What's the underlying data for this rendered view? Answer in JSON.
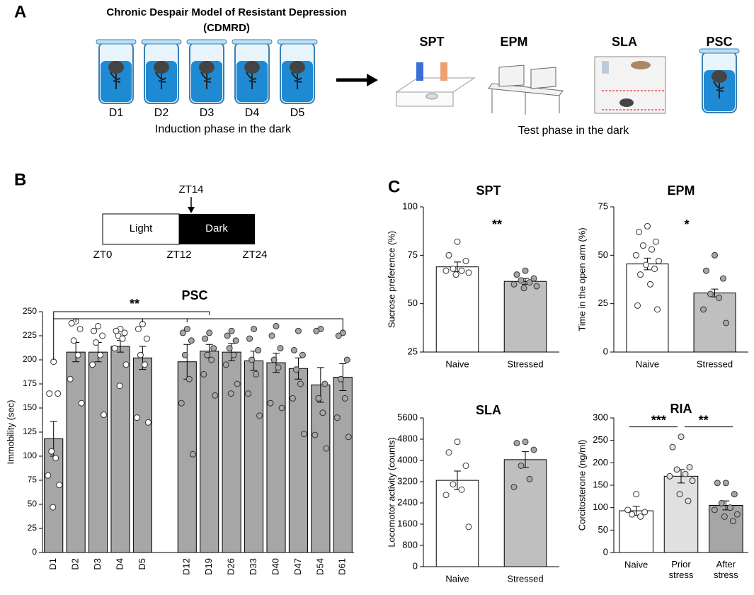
{
  "panel_labels": [
    "A",
    "B",
    "C"
  ],
  "panel_a": {
    "title": "Chronic Despair Model of Resistant Depression",
    "subtitle": "(CDMRD)",
    "days": [
      "D1",
      "D2",
      "D3",
      "D4",
      "D5"
    ],
    "induction_label": "Induction phase in the dark",
    "tests": [
      "SPT",
      "EPM",
      "SLA",
      "PSC"
    ],
    "test_label": "Test phase in the dark"
  },
  "timeline": {
    "marker": "ZT14",
    "light": "Light",
    "dark": "Dark",
    "ticks": [
      "ZT0",
      "ZT12",
      "ZT24"
    ]
  },
  "chart_data": [
    {
      "type": "bar",
      "title": "PSC",
      "ylabel": "Immobility (sec)",
      "categories": [
        "D1",
        "D2",
        "D3",
        "D4",
        "D5",
        null,
        "D12",
        "D19",
        "D26",
        "D33",
        "D40",
        "D47",
        "D54",
        "D61"
      ],
      "values": [
        118,
        208,
        208,
        214,
        202,
        null,
        198,
        209,
        208,
        199,
        197,
        191,
        174,
        182
      ],
      "errors": [
        18,
        10,
        10,
        6,
        12,
        null,
        18,
        7,
        9,
        10,
        10,
        11,
        18,
        14
      ],
      "points": [
        [
          198,
          165,
          165,
          105,
          98,
          80,
          70,
          47
        ],
        [
          240,
          238,
          232,
          220,
          205,
          180,
          155
        ],
        [
          235,
          230,
          225,
          218,
          205,
          195,
          143
        ],
        [
          232,
          230,
          228,
          225,
          222,
          212,
          195,
          173
        ],
        [
          237,
          232,
          222,
          205,
          195,
          140,
          135
        ],
        null,
        [
          232,
          228,
          220,
          205,
          180,
          155,
          102
        ],
        [
          228,
          222,
          212,
          205,
          200,
          185,
          163
        ],
        [
          230,
          225,
          220,
          212,
          205,
          195,
          175,
          165
        ],
        [
          232,
          222,
          210,
          200,
          185,
          165,
          142
        ],
        [
          235,
          225,
          212,
          200,
          192,
          155,
          150
        ],
        [
          230,
          210,
          205,
          190,
          175,
          160,
          123
        ],
        [
          232,
          230,
          175,
          160,
          145,
          122,
          108
        ],
        [
          228,
          225,
          200,
          180,
          160,
          140,
          120
        ]
      ],
      "colors": [
        "#a6a6a6",
        "#a6a6a6",
        "#a6a6a6",
        "#a6a6a6",
        "#a6a6a6",
        null,
        "#a6a6a6",
        "#a6a6a6",
        "#a6a6a6",
        "#a6a6a6",
        "#a6a6a6",
        "#a6a6a6",
        "#a6a6a6",
        "#a6a6a6"
      ],
      "point_colors": [
        "#ffffff",
        "#ffffff",
        "#ffffff",
        "#ffffff",
        "#ffffff",
        null,
        "#a6a6a6",
        "#a6a6a6",
        "#a6a6a6",
        "#a6a6a6",
        "#a6a6a6",
        "#a6a6a6",
        "#a6a6a6",
        "#a6a6a6"
      ],
      "ylim": [
        0,
        250
      ],
      "yticks": [
        0,
        25,
        50,
        75,
        100,
        125,
        150,
        175,
        200,
        225,
        250
      ],
      "annotations": [
        "**"
      ]
    },
    {
      "type": "bar",
      "title": "SPT",
      "ylabel": "Sucrose preference (%)",
      "categories": [
        "Naive",
        "Stressed"
      ],
      "values": [
        69,
        61.5
      ],
      "errors": [
        2.5,
        1.5
      ],
      "points": [
        [
          82,
          75,
          72,
          68,
          67,
          67,
          66,
          65
        ],
        [
          67,
          65,
          63,
          62,
          61,
          60,
          59,
          58
        ]
      ],
      "colors": [
        "#ffffff",
        "#bfbfbf"
      ],
      "point_colors": [
        "#ffffff",
        "#a6a6a6"
      ],
      "ylim": [
        25,
        100
      ],
      "yticks": [
        25,
        50,
        75,
        100
      ],
      "annotations": [
        "**"
      ]
    },
    {
      "type": "bar",
      "title": "EPM",
      "ylabel": "Time in the open arm (%)",
      "categories": [
        "Naive",
        "Stressed"
      ],
      "values": [
        45.5,
        30.5
      ],
      "errors": [
        3,
        2
      ],
      "points": [
        [
          65,
          62,
          57,
          55,
          53,
          50,
          47,
          45,
          43,
          40,
          35,
          24,
          22
        ],
        [
          50,
          42,
          38,
          30,
          28,
          22,
          15
        ]
      ],
      "colors": [
        "#ffffff",
        "#bfbfbf"
      ],
      "point_colors": [
        "#ffffff",
        "#a6a6a6"
      ],
      "ylim": [
        0,
        75
      ],
      "yticks": [
        0,
        25,
        50,
        75
      ],
      "annotations": [
        "*"
      ]
    },
    {
      "type": "bar",
      "title": "SLA",
      "ylabel": "Locomotor activity (counts)",
      "categories": [
        "Naive",
        "Stressed"
      ],
      "values": [
        3250,
        4030
      ],
      "errors": [
        350,
        300
      ],
      "points": [
        [
          4700,
          4300,
          3800,
          3100,
          2900,
          2700,
          1500
        ],
        [
          4700,
          4650,
          4400,
          3800,
          3300,
          3000
        ]
      ],
      "colors": [
        "#ffffff",
        "#bfbfbf"
      ],
      "point_colors": [
        "#ffffff",
        "#a6a6a6"
      ],
      "ylim": [
        0,
        5600
      ],
      "yticks": [
        0,
        800,
        1600,
        2400,
        3200,
        4000,
        4800,
        5600
      ]
    },
    {
      "type": "bar",
      "title": "RIA",
      "ylabel": "Corcitosterone (ng/ml)",
      "categories": [
        "Naive",
        "Prior stress",
        "After stress"
      ],
      "values": [
        93,
        170,
        105
      ],
      "errors": [
        10,
        15,
        10
      ],
      "points": [
        [
          130,
          95,
          90,
          85,
          80
        ],
        [
          258,
          235,
          190,
          185,
          175,
          170,
          160,
          130,
          115
        ],
        [
          155,
          155,
          130,
          110,
          100,
          95,
          85,
          80,
          70
        ]
      ],
      "colors": [
        "#ffffff",
        "#e0e0e0",
        "#a6a6a6"
      ],
      "point_colors": [
        "#ffffff",
        "#e0e0e0",
        "#a6a6a6"
      ],
      "ylim": [
        0,
        300
      ],
      "yticks": [
        0,
        50,
        100,
        150,
        200,
        250,
        300
      ],
      "annotations": [
        "***",
        "**"
      ]
    }
  ]
}
